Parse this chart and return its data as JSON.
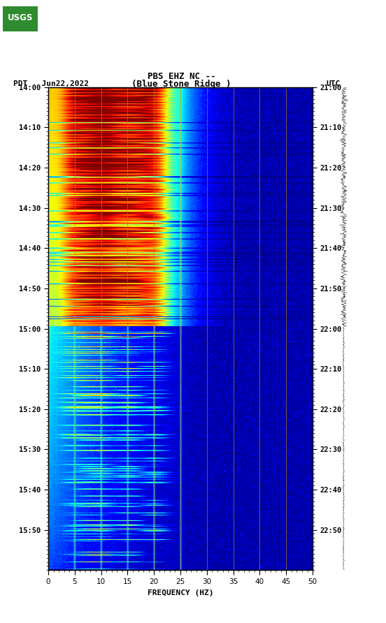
{
  "title_line1": "PBS EHZ NC --",
  "title_line2": "(Blue Stone Ridge )",
  "left_label": "PDT   Jun22,2022",
  "right_label": "UTC",
  "left_yticks": [
    "14:00",
    "14:10",
    "14:20",
    "14:30",
    "14:40",
    "14:50",
    "15:00",
    "15:10",
    "15:20",
    "15:30",
    "15:40",
    "15:50"
  ],
  "right_yticks": [
    "21:00",
    "21:10",
    "21:20",
    "21:30",
    "21:40",
    "21:50",
    "22:00",
    "22:10",
    "22:20",
    "22:30",
    "22:40",
    "22:50"
  ],
  "xlabel": "FREQUENCY (HZ)",
  "xmin": 0,
  "xmax": 50,
  "xticks": [
    0,
    5,
    10,
    15,
    20,
    25,
    30,
    35,
    40,
    45,
    50
  ],
  "freq_lines": [
    5.0,
    10.0,
    15.0,
    20.0,
    25.0,
    30.0,
    35.0,
    40.0,
    45.0
  ],
  "background_color": "#ffffff",
  "n_time": 690,
  "n_freq": 500,
  "noise_seed": 42,
  "figsize": [
    5.52,
    8.92
  ],
  "dpi": 100
}
